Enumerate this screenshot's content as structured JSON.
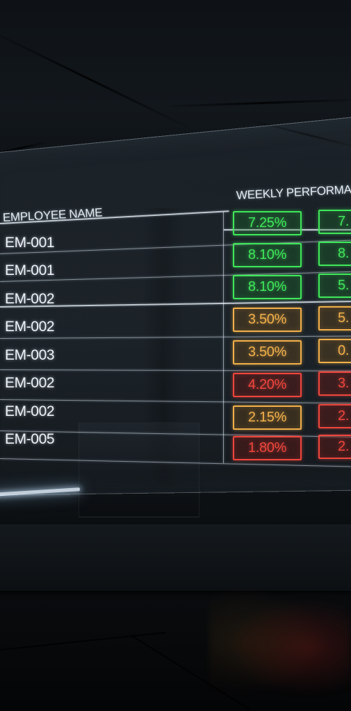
{
  "table": {
    "header_name": "EMPLOYEE NAME",
    "header_metric": "WEEKLY PERFORMA",
    "rows": [
      {
        "name": "EM-001",
        "value": "7.25%",
        "status": "green",
        "next": "7."
      },
      {
        "name": "EM-001",
        "value": "8.10%",
        "status": "green",
        "next": "8."
      },
      {
        "name": "EM-002",
        "value": "8.10%",
        "status": "green",
        "next": "5."
      },
      {
        "name": "EM-002",
        "value": "3.50%",
        "status": "amber",
        "next": "5."
      },
      {
        "name": "EM-003",
        "value": "3.50%",
        "status": "amber",
        "next": "0."
      },
      {
        "name": "EM-002",
        "value": "4.20%",
        "status": "red",
        "next": "3."
      },
      {
        "name": "EM-002",
        "value": "2.15%",
        "status": "amber",
        "next": "2."
      },
      {
        "name": "EM-005",
        "value": "1.80%",
        "status": "red",
        "next": "2."
      }
    ],
    "next_status": [
      "green",
      "green",
      "green",
      "amber",
      "amber",
      "red",
      "red",
      "red"
    ]
  },
  "colors": {
    "green": "#3fe85a",
    "amber": "#f2b04a",
    "red": "#f0463c",
    "green_bg": "rgba(30,120,45,0.30)",
    "amber_bg": "rgba(130,85,25,0.30)",
    "red_bg": "rgba(130,25,20,0.32)"
  }
}
